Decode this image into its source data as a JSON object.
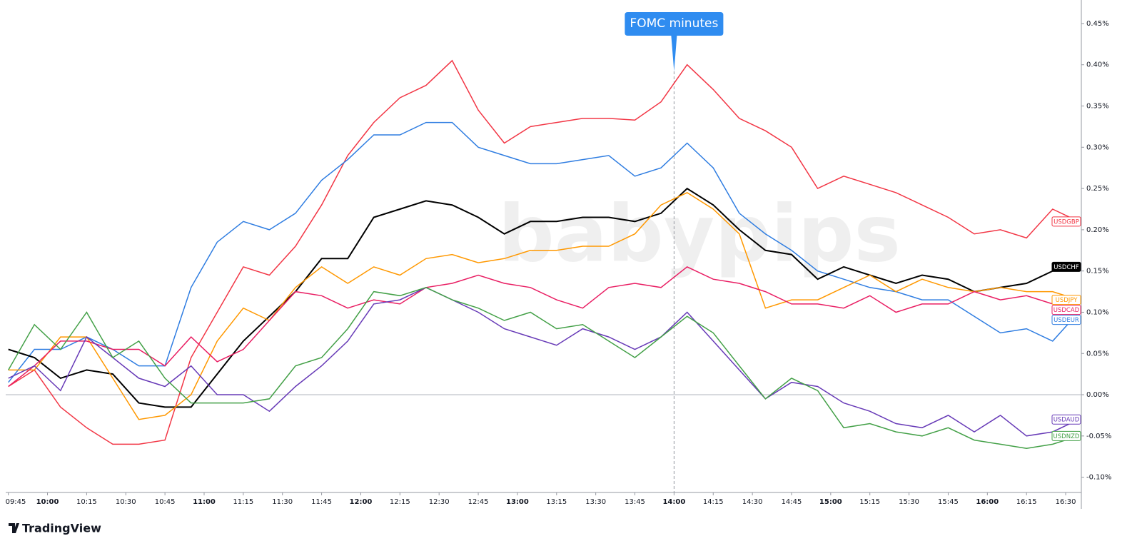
{
  "chart_data": {
    "type": "line",
    "annotation": {
      "text": "FOMC minutes",
      "x": "14:00"
    },
    "watermark": "babypips",
    "branding": "TradingView",
    "x": [
      "09:45",
      "09:55",
      "10:05",
      "10:15",
      "10:25",
      "10:35",
      "10:45",
      "10:55",
      "11:05",
      "11:15",
      "11:25",
      "11:35",
      "11:45",
      "11:55",
      "12:05",
      "12:15",
      "12:25",
      "12:35",
      "12:45",
      "12:55",
      "13:05",
      "13:15",
      "13:25",
      "13:35",
      "13:45",
      "13:55",
      "14:05",
      "14:15",
      "14:25",
      "14:35",
      "14:45",
      "14:55",
      "15:05",
      "15:15",
      "15:25",
      "15:35",
      "15:45",
      "15:55",
      "16:05",
      "16:15",
      "16:25",
      "16:35"
    ],
    "xlim": [
      "09:44",
      "16:36"
    ],
    "xticks": [
      "09:45",
      "10:00",
      "10:15",
      "10:30",
      "10:45",
      "11:00",
      "11:15",
      "11:30",
      "11:45",
      "12:00",
      "12:15",
      "12:30",
      "12:45",
      "13:00",
      "13:15",
      "13:30",
      "13:45",
      "14:00",
      "14:15",
      "14:30",
      "14:45",
      "15:00",
      "15:15",
      "15:30",
      "15:45",
      "16:00",
      "16:15",
      "16:30"
    ],
    "ylim": [
      -0.1185,
      0.4785
    ],
    "yticks": [
      {
        "value": 0.45,
        "label": "0.45%"
      },
      {
        "value": 0.4,
        "label": "0.40%"
      },
      {
        "value": 0.35,
        "label": "0.35%"
      },
      {
        "value": 0.3,
        "label": "0.30%"
      },
      {
        "value": 0.25,
        "label": "0.25%"
      },
      {
        "value": 0.2,
        "label": "0.20%"
      },
      {
        "value": 0.15,
        "label": "0.15%"
      },
      {
        "value": 0.1,
        "label": "0.10%"
      },
      {
        "value": 0.05,
        "label": "0.05%"
      },
      {
        "value": 0,
        "label": "0.00%"
      },
      {
        "value": -0.05,
        "label": "-0.05%"
      },
      {
        "value": -0.1,
        "label": "-0.10%"
      }
    ],
    "series": [
      {
        "name": "USDGBP",
        "color": "#f23645",
        "values": [
          0.01,
          0.03,
          -0.015,
          -0.04,
          -0.06,
          -0.06,
          -0.055,
          0.045,
          0.1,
          0.155,
          0.145,
          0.18,
          0.23,
          0.29,
          0.33,
          0.36,
          0.375,
          0.405,
          0.345,
          0.305,
          0.325,
          0.33,
          0.335,
          0.335,
          0.333,
          0.355,
          0.4,
          0.37,
          0.335,
          0.32,
          0.3,
          0.25,
          0.265,
          0.255,
          0.245,
          0.23,
          0.215,
          0.195,
          0.2,
          0.19,
          0.225,
          0.21
        ]
      },
      {
        "name": "USDEUR",
        "color": "#2f7de1",
        "values": [
          0.015,
          0.055,
          0.055,
          0.07,
          0.055,
          0.035,
          0.035,
          0.13,
          0.185,
          0.21,
          0.2,
          0.22,
          0.26,
          0.285,
          0.315,
          0.315,
          0.33,
          0.33,
          0.3,
          0.29,
          0.28,
          0.28,
          0.285,
          0.29,
          0.265,
          0.275,
          0.305,
          0.275,
          0.22,
          0.195,
          0.175,
          0.15,
          0.14,
          0.13,
          0.125,
          0.115,
          0.115,
          0.095,
          0.075,
          0.08,
          0.065,
          0.1
        ]
      },
      {
        "name": "USDCHF",
        "color": "#000000",
        "values": [
          0.055,
          0.045,
          0.02,
          0.03,
          0.025,
          -0.01,
          -0.015,
          -0.015,
          0.025,
          0.065,
          0.095,
          0.125,
          0.165,
          0.165,
          0.215,
          0.225,
          0.235,
          0.23,
          0.215,
          0.195,
          0.21,
          0.21,
          0.215,
          0.215,
          0.21,
          0.22,
          0.25,
          0.23,
          0.2,
          0.175,
          0.17,
          0.14,
          0.155,
          0.145,
          0.135,
          0.145,
          0.14,
          0.125,
          0.13,
          0.135,
          0.15,
          0.155
        ]
      },
      {
        "name": "USDJPY",
        "color": "#ff9800",
        "values": [
          0.03,
          0.03,
          0.07,
          0.07,
          0.02,
          -0.03,
          -0.025,
          0,
          0.065,
          0.105,
          0.09,
          0.13,
          0.155,
          0.135,
          0.155,
          0.145,
          0.165,
          0.17,
          0.16,
          0.165,
          0.175,
          0.175,
          0.18,
          0.18,
          0.195,
          0.23,
          0.245,
          0.225,
          0.195,
          0.105,
          0.115,
          0.115,
          0.13,
          0.145,
          0.125,
          0.14,
          0.13,
          0.125,
          0.13,
          0.125,
          0.125,
          0.115
        ]
      },
      {
        "name": "USDCAD",
        "color": "#e91e63",
        "values": [
          0.01,
          0.035,
          0.065,
          0.065,
          0.055,
          0.055,
          0.035,
          0.07,
          0.04,
          0.055,
          0.09,
          0.125,
          0.12,
          0.105,
          0.115,
          0.11,
          0.13,
          0.135,
          0.145,
          0.135,
          0.13,
          0.115,
          0.105,
          0.13,
          0.135,
          0.13,
          0.155,
          0.14,
          0.135,
          0.125,
          0.11,
          0.11,
          0.105,
          0.12,
          0.1,
          0.11,
          0.11,
          0.125,
          0.115,
          0.12,
          0.11,
          0.105
        ]
      },
      {
        "name": "USDAUD",
        "color": "#673ab7",
        "values": [
          0.02,
          0.035,
          0.005,
          0.07,
          0.045,
          0.02,
          0.01,
          0.035,
          0,
          0,
          -0.02,
          0.01,
          0.035,
          0.065,
          0.11,
          0.115,
          0.13,
          0.115,
          0.1,
          0.08,
          0.07,
          0.06,
          0.08,
          0.07,
          0.055,
          0.07,
          0.1,
          0.065,
          0.03,
          -0.005,
          0.015,
          0.01,
          -0.01,
          -0.02,
          -0.035,
          -0.04,
          -0.025,
          -0.045,
          -0.025,
          -0.05,
          -0.045,
          -0.03
        ]
      },
      {
        "name": "USDNZD",
        "color": "#43a047",
        "values": [
          0.03,
          0.085,
          0.055,
          0.1,
          0.045,
          0.065,
          0.02,
          -0.01,
          -0.01,
          -0.01,
          -0.005,
          0.035,
          0.045,
          0.08,
          0.125,
          0.12,
          0.13,
          0.115,
          0.105,
          0.09,
          0.1,
          0.08,
          0.085,
          0.065,
          0.045,
          0.07,
          0.095,
          0.075,
          0.035,
          -0.005,
          0.02,
          0.005,
          -0.04,
          -0.035,
          -0.045,
          -0.05,
          -0.04,
          -0.055,
          -0.06,
          -0.065,
          -0.06,
          -0.05
        ]
      }
    ]
  }
}
